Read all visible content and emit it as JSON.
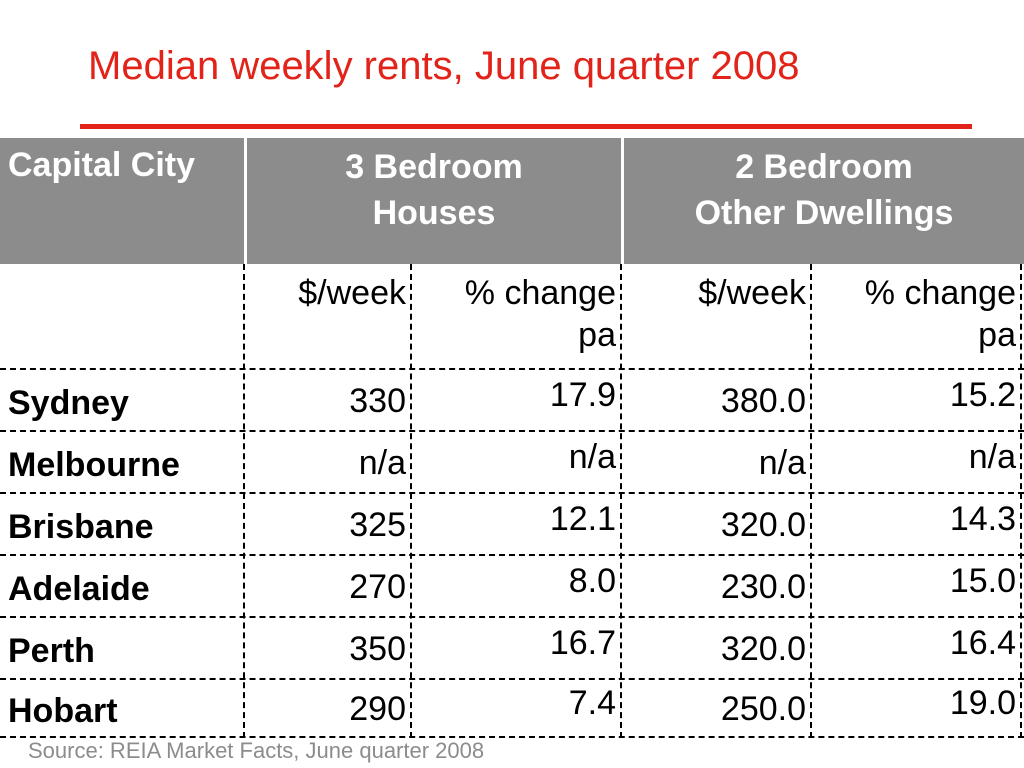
{
  "title": "Median weekly rents, June quarter 2008",
  "header": {
    "city": "Capital City",
    "houses_line1": "3 Bedroom",
    "houses_line2": "Houses",
    "other_line1": "2 Bedroom",
    "other_line2": "Other Dwellings"
  },
  "subheader": {
    "week1": "$/week",
    "change1_line1": "% change",
    "change1_line2": "pa",
    "week2": "$/week",
    "change2_line1": "% change",
    "change2_line2": "pa"
  },
  "rows": [
    {
      "city": "Sydney",
      "h_week": "330",
      "h_change": "17.9",
      "o_week": "380.0",
      "o_change": "15.2"
    },
    {
      "city": "Melbourne",
      "h_week": "n/a",
      "h_change": "n/a",
      "o_week": "n/a",
      "o_change": "n/a"
    },
    {
      "city": "Brisbane",
      "h_week": "325",
      "h_change": "12.1",
      "o_week": "320.0",
      "o_change": "14.3"
    },
    {
      "city": "Adelaide",
      "h_week": "270",
      "h_change": "8.0",
      "o_week": "230.0",
      "o_change": "15.0"
    },
    {
      "city": "Perth",
      "h_week": "350",
      "h_change": "16.7",
      "o_week": "320.0",
      "o_change": "16.4"
    },
    {
      "city": "Hobart",
      "h_week": "290",
      "h_change": "7.4",
      "o_week": "250.0",
      "o_change": "19.0"
    }
  ],
  "source": "Source: REIA Market Facts, June quarter 2008",
  "colors": {
    "accent": "#e2231a",
    "header_bg": "#8c8c8c",
    "source_text": "#8c8c8c"
  }
}
